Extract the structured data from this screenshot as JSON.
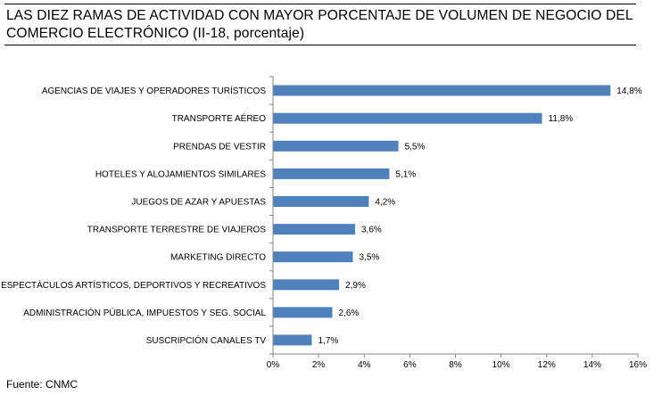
{
  "title": "LAS DIEZ RAMAS DE ACTIVIDAD CON MAYOR PORCENTAJE DE VOLUMEN DE NEGOCIO DEL COMERCIO ELECTRÓNICO (II-18, porcentaje)",
  "source": "Fuente: CNMC",
  "colors": {
    "bar": "#4f81bd",
    "axis": "#868686"
  },
  "chart_data": {
    "type": "bar",
    "orientation": "horizontal",
    "title": "LAS DIEZ RAMAS DE ACTIVIDAD CON MAYOR PORCENTAJE DE VOLUMEN DE NEGOCIO DEL COMERCIO ELECTRÓNICO (II-18, porcentaje)",
    "xlabel": "",
    "ylabel": "",
    "xlim": [
      0,
      16
    ],
    "grid": false,
    "legend": "none",
    "categories": [
      "AGENCIAS DE VIAJES Y OPERADORES TURÍSTICOS",
      "TRANSPORTE AÉREO",
      "PRENDAS DE VESTIR",
      "HOTELES  Y ALOJAMIENTOS SIMILARES",
      "JUEGOS DE AZAR Y APUESTAS",
      "TRANSPORTE TERRESTRE DE VIAJEROS",
      "MARKETING DIRECTO",
      "ESPECTÁCULOS ARTÍSTICOS, DEPORTIVOS Y RECREATIVOS",
      "ADMINISTRACIÓN PÚBLICA, IMPUESTOS Y SEG. SOCIAL",
      "SUSCRIPCIÓN CANALES TV"
    ],
    "values": [
      14.8,
      11.8,
      5.5,
      5.1,
      4.2,
      3.6,
      3.5,
      2.9,
      2.6,
      1.7
    ],
    "value_labels": [
      "14,8%",
      "11,8%",
      "5,5%",
      "5,1%",
      "4,2%",
      "3,6%",
      "3,5%",
      "2,9%",
      "2,6%",
      "1,7%"
    ],
    "x_ticks": [
      0,
      2,
      4,
      6,
      8,
      10,
      12,
      14,
      16
    ],
    "x_tick_labels": [
      "0%",
      "2%",
      "4%",
      "6%",
      "8%",
      "10%",
      "12%",
      "14%",
      "16%"
    ]
  }
}
